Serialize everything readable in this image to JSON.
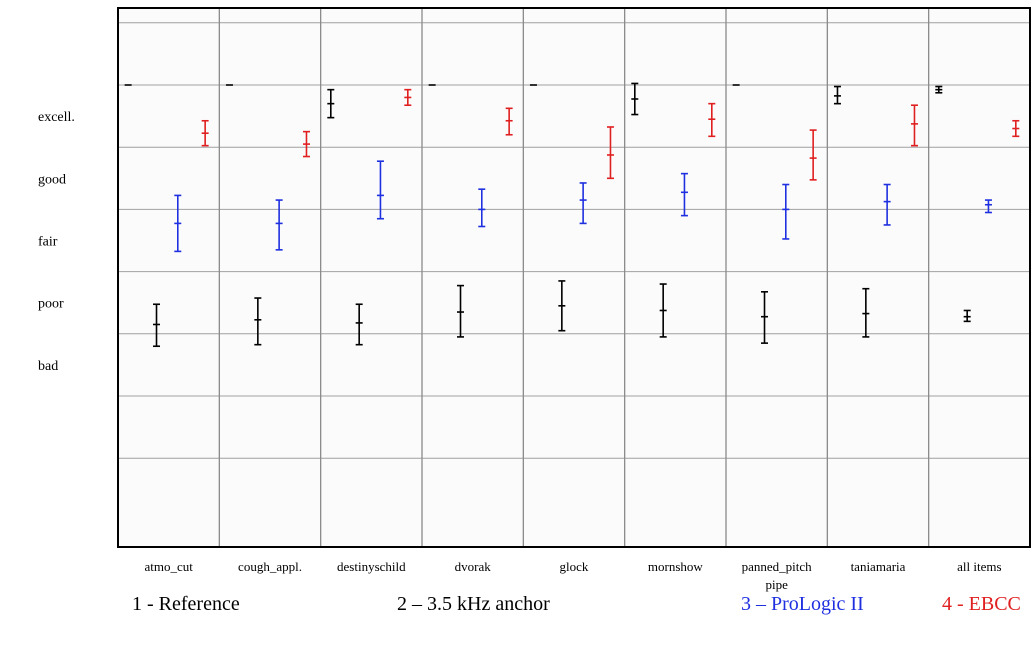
{
  "chart_data": {
    "type": "errorbar",
    "y_categories": [
      "excell.",
      "good",
      "fair",
      "poor",
      "bad"
    ],
    "categories": [
      [
        "atmo_cut"
      ],
      [
        "cough_appl."
      ],
      [
        "destinyschild"
      ],
      [
        "dvorak"
      ],
      [
        "glock"
      ],
      [
        "mornshow"
      ],
      [
        "panned_pitch",
        "pipe"
      ],
      [
        "taniamaria"
      ],
      [
        "all items"
      ]
    ],
    "ylim": [
      0,
      100
    ],
    "series": [
      {
        "name": "1 - Reference",
        "color": "#000000",
        "values": [
          {
            "mean": 100,
            "low": 100,
            "high": 100
          },
          {
            "mean": 100,
            "low": 100,
            "high": 100
          },
          {
            "mean": 94,
            "low": 89.5,
            "high": 98.5
          },
          {
            "mean": 100,
            "low": 100,
            "high": 100
          },
          {
            "mean": 100,
            "low": 100,
            "high": 100
          },
          {
            "mean": 95.5,
            "low": 90.5,
            "high": 100.5
          },
          {
            "mean": 100,
            "low": 100,
            "high": 100
          },
          {
            "mean": 96.5,
            "low": 94,
            "high": 99.5
          },
          {
            "mean": 98.5,
            "low": 97.5,
            "high": 99.5
          }
        ]
      },
      {
        "name": "2 – 3.5 kHz anchor",
        "color": "#000000",
        "values": [
          {
            "mean": 23,
            "low": 16,
            "high": 29.5
          },
          {
            "mean": 24.5,
            "low": 16.5,
            "high": 31.5
          },
          {
            "mean": 23.5,
            "low": 16.5,
            "high": 29.5
          },
          {
            "mean": 27,
            "low": 19,
            "high": 35.5
          },
          {
            "mean": 29,
            "low": 21,
            "high": 37
          },
          {
            "mean": 27.5,
            "low": 19,
            "high": 36
          },
          {
            "mean": 25.5,
            "low": 17,
            "high": 33.5
          },
          {
            "mean": 26.5,
            "low": 19,
            "high": 34.5
          },
          {
            "mean": 25.5,
            "low": 24,
            "high": 27.5
          }
        ]
      },
      {
        "name": "3 – ProLogic II",
        "color": "#1f30e0",
        "values": [
          {
            "mean": 55.5,
            "low": 46.5,
            "high": 64.5
          },
          {
            "mean": 55.5,
            "low": 47,
            "high": 63
          },
          {
            "mean": 64.5,
            "low": 57,
            "high": 75.5
          },
          {
            "mean": 60,
            "low": 54.5,
            "high": 66.5
          },
          {
            "mean": 63,
            "low": 55.5,
            "high": 68.5
          },
          {
            "mean": 65.5,
            "low": 58,
            "high": 71.5
          },
          {
            "mean": 60,
            "low": 50.5,
            "high": 68
          },
          {
            "mean": 62.5,
            "low": 55,
            "high": 68
          },
          {
            "mean": 61.5,
            "low": 59,
            "high": 63
          }
        ]
      },
      {
        "name": "4 - EBCC",
        "color": "#e02020",
        "values": [
          {
            "mean": 84.5,
            "low": 80.5,
            "high": 88.5
          },
          {
            "mean": 81,
            "low": 77,
            "high": 85
          },
          {
            "mean": 96,
            "low": 93.5,
            "high": 98.5
          },
          {
            "mean": 88.5,
            "low": 84,
            "high": 92.5
          },
          {
            "mean": 77.5,
            "low": 70,
            "high": 86.5
          },
          {
            "mean": 89,
            "low": 83.5,
            "high": 94
          },
          {
            "mean": 76.5,
            "low": 69.5,
            "high": 85.5
          },
          {
            "mean": 87.5,
            "low": 80.5,
            "high": 93.5
          },
          {
            "mean": 86,
            "low": 83.5,
            "high": 88.5
          }
        ]
      }
    ],
    "grid": true
  }
}
